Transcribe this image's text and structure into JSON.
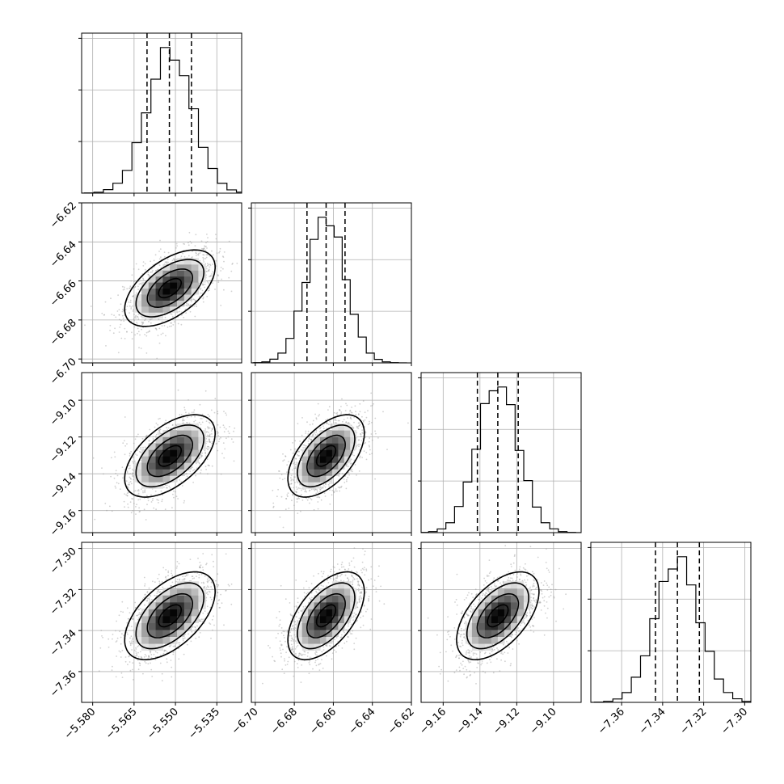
{
  "chart_data": {
    "type": "corner",
    "params": [
      {
        "mean": -5.552,
        "sigma": 0.0082,
        "lim": [
          -5.584,
          -5.526
        ],
        "ticks": [
          -5.58,
          -5.565,
          -5.55,
          -5.535
        ],
        "tick_labels": [
          "−5.580",
          "−5.565",
          "−5.550",
          "−5.535"
        ],
        "quantiles": [
          -5.5603,
          -5.5522,
          -5.5442
        ]
      },
      {
        "mean": -6.6637,
        "sigma": 0.0098,
        "lim": [
          -6.702,
          -6.62
        ],
        "ticks": [
          -6.7,
          -6.68,
          -6.66,
          -6.64,
          -6.62
        ],
        "tick_labels": [
          "−6.70",
          "−6.68",
          "−6.66",
          "−6.64",
          "−6.62"
        ],
        "quantiles": [
          -6.6735,
          -6.6637,
          -6.654
        ]
      },
      {
        "mean": -9.1303,
        "sigma": 0.0112,
        "lim": [
          -9.172,
          -9.085
        ],
        "ticks": [
          -9.16,
          -9.14,
          -9.12,
          -9.1
        ],
        "tick_labels": [
          "−9.16",
          "−9.14",
          "−9.12",
          "−9.10"
        ],
        "quantiles": [
          -9.1414,
          -9.1303,
          -9.1192
        ]
      },
      {
        "mean": -7.3328,
        "sigma": 0.0107,
        "lim": [
          -7.375,
          -7.297
        ],
        "ticks": [
          -7.36,
          -7.34,
          -7.32,
          -7.3
        ],
        "tick_labels": [
          "−7.36",
          "−7.34",
          "−7.32",
          "−7.30"
        ],
        "quantiles": [
          -7.3435,
          -7.3328,
          -7.3221
        ]
      }
    ],
    "correlation": 0.55,
    "hist_bins": 20,
    "hist_yticks": 3,
    "contour_levels": [
      0.5,
      1.0,
      1.5,
      2.0
    ],
    "grid": true,
    "quantile_style": "dashed",
    "colors": {
      "hist": "#000000",
      "contour": "#000000",
      "points": "#9a9a9a",
      "grid": "#b0b0b0"
    }
  }
}
